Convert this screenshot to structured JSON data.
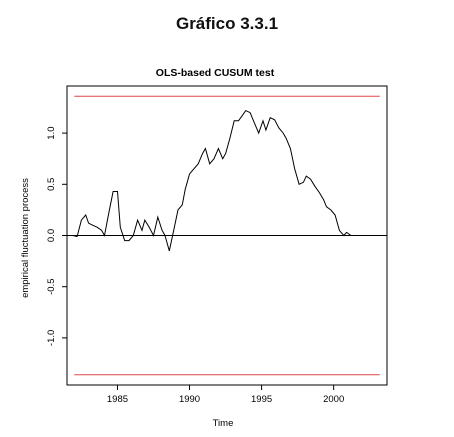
{
  "caption": "Gráfico 3.3.1",
  "chart_data": {
    "type": "line",
    "title": "OLS-based CUSUM test",
    "xlabel": "Time",
    "ylabel": "empirical fluctuation process",
    "xlim": [
      1981.5,
      2003.7
    ],
    "ylim": [
      -1.46,
      1.46
    ],
    "x_ticks": [
      1985,
      1990,
      1995,
      2000
    ],
    "y_ticks": [
      -1.0,
      -0.5,
      0.0,
      0.5,
      1.0
    ],
    "y_tick_labels": [
      "-1.0",
      "-0.5",
      "0.0",
      "0.5",
      "1.0"
    ],
    "grid": false,
    "boundary": {
      "upper": 1.36,
      "lower": -1.36,
      "color": "#e04848"
    },
    "zero_line": 0.0,
    "series": [
      {
        "color": "#000000",
        "x": [
          1981.9,
          1982.2,
          1982.5,
          1982.8,
          1983.0,
          1983.3,
          1983.6,
          1983.9,
          1984.1,
          1984.4,
          1984.7,
          1985.0,
          1985.2,
          1985.5,
          1985.8,
          1986.1,
          1986.4,
          1986.7,
          1986.9,
          1987.2,
          1987.5,
          1987.8,
          1988.1,
          1988.3,
          1988.6,
          1988.9,
          1989.2,
          1989.5,
          1989.7,
          1990.0,
          1990.3,
          1990.6,
          1990.9,
          1991.1,
          1991.4,
          1991.7,
          1992.0,
          1992.3,
          1992.5,
          1992.8,
          1993.1,
          1993.4,
          1993.7,
          1993.9,
          1994.2,
          1994.5,
          1994.8,
          1995.1,
          1995.3,
          1995.6,
          1995.9,
          1996.2,
          1996.5,
          1996.7,
          1997.0,
          1997.3,
          1997.6,
          1997.9,
          1998.1,
          1998.4,
          1998.7,
          1999.0,
          1999.3,
          1999.5,
          1999.8,
          2000.1,
          2000.4,
          2000.7,
          2000.9,
          2001.2,
          2001.5,
          2001.8,
          2002.1,
          2002.3,
          2002.6,
          2002.9,
          2003.0
        ],
        "y": [
          0.0,
          -0.01,
          0.15,
          0.2,
          0.12,
          0.1,
          0.08,
          0.05,
          0.0,
          0.22,
          0.43,
          0.43,
          0.08,
          -0.05,
          -0.05,
          0.0,
          0.15,
          0.05,
          0.15,
          0.08,
          0.0,
          0.18,
          0.05,
          0.0,
          -0.15,
          0.05,
          0.25,
          0.3,
          0.45,
          0.6,
          0.65,
          0.7,
          0.8,
          0.85,
          0.7,
          0.75,
          0.85,
          0.75,
          0.8,
          0.95,
          1.12,
          1.12,
          1.18,
          1.22,
          1.2,
          1.1,
          1.0,
          1.12,
          1.03,
          1.15,
          1.13,
          1.05,
          1.0,
          0.95,
          0.85,
          0.65,
          0.5,
          0.52,
          0.58,
          0.55,
          0.48,
          0.42,
          0.35,
          0.28,
          0.25,
          0.2,
          0.05,
          0.0,
          0.03,
          0.0,
          0.0,
          0.0,
          0.0,
          0.0,
          0.0,
          0.0,
          0.0
        ]
      }
    ]
  }
}
